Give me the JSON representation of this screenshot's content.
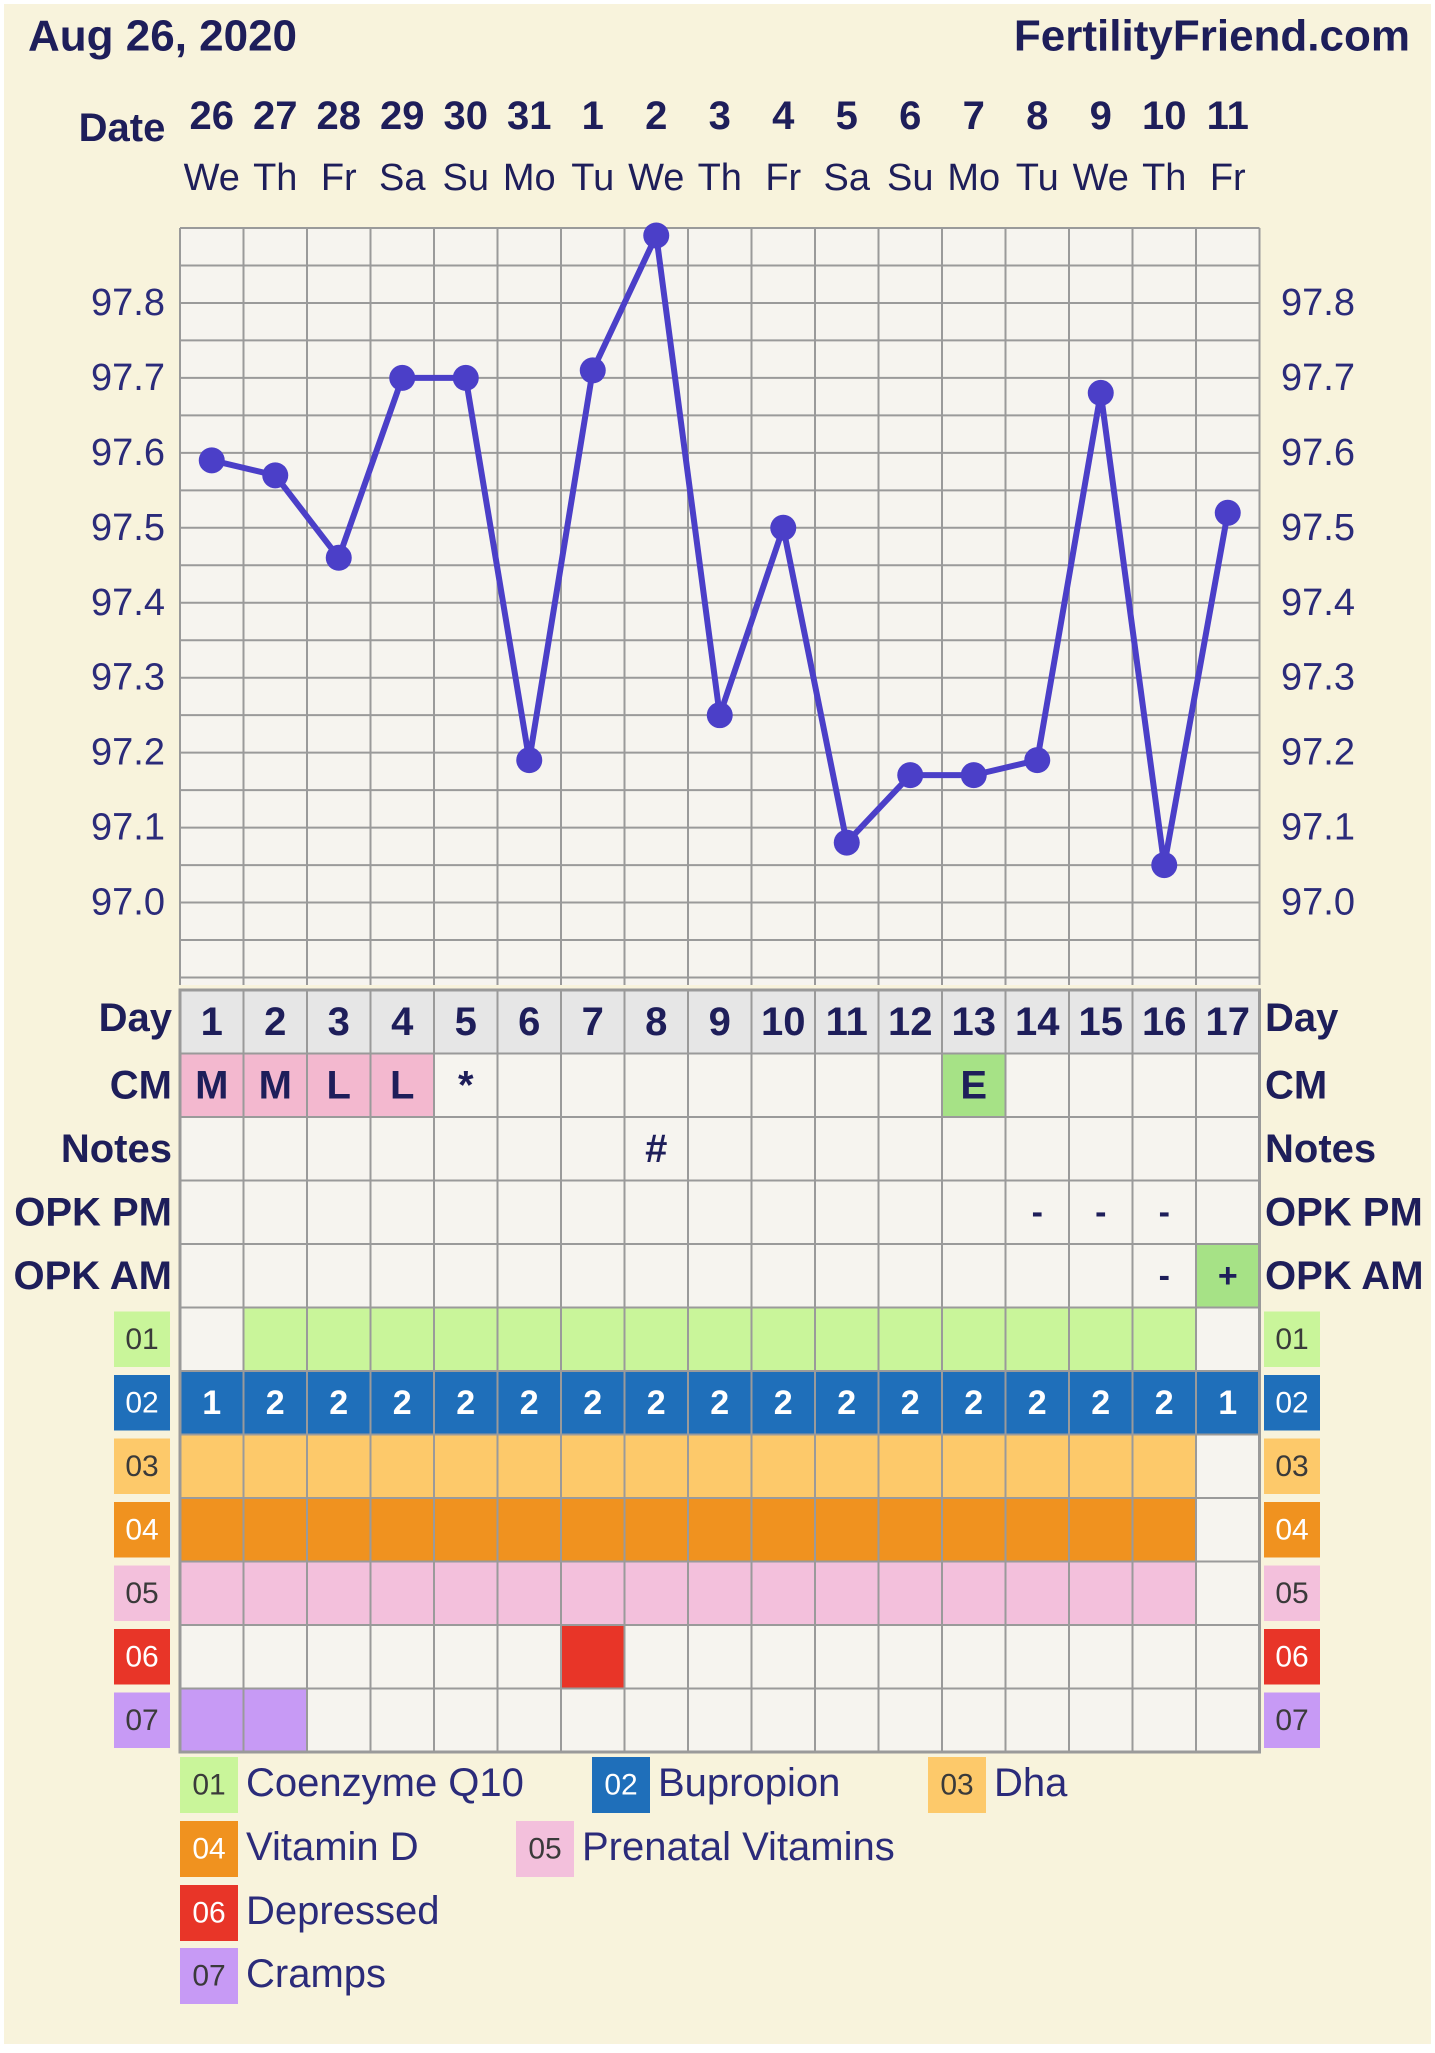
{
  "header": {
    "date_title": "Aug 26, 2020",
    "site": "FertilityFriend.com",
    "date_label": "Date"
  },
  "chart_data": {
    "type": "line",
    "dates": [
      "26",
      "27",
      "28",
      "29",
      "30",
      "31",
      "1",
      "2",
      "3",
      "4",
      "5",
      "6",
      "7",
      "8",
      "9",
      "10",
      "11"
    ],
    "weekdays": [
      "We",
      "Th",
      "Fr",
      "Sa",
      "Su",
      "Mo",
      "Tu",
      "We",
      "Th",
      "Fr",
      "Sa",
      "Su",
      "Mo",
      "Tu",
      "We",
      "Th",
      "Fr"
    ],
    "days": [
      "1",
      "2",
      "3",
      "4",
      "5",
      "6",
      "7",
      "8",
      "9",
      "10",
      "11",
      "12",
      "13",
      "14",
      "15",
      "16",
      "17"
    ],
    "temps": [
      97.59,
      97.57,
      97.46,
      97.7,
      97.7,
      97.19,
      97.71,
      97.89,
      97.25,
      97.5,
      97.08,
      97.17,
      97.17,
      97.19,
      97.68,
      97.05,
      97.52
    ],
    "y_ticks": [
      "97.0",
      "97.1",
      "97.2",
      "97.3",
      "97.4",
      "97.5",
      "97.6",
      "97.7",
      "97.8"
    ],
    "ylim": [
      96.89,
      97.9
    ],
    "line_color": "#4b3fc8",
    "grid": true
  },
  "rows": {
    "day_label": "Day",
    "cm_label": "CM",
    "notes_label": "Notes",
    "opk_pm_label": "OPK PM",
    "opk_am_label": "OPK AM",
    "cm": [
      "M",
      "M",
      "L",
      "L",
      "*",
      "",
      "",
      "",
      "",
      "",
      "",
      "",
      "E",
      "",
      "",
      "",
      ""
    ],
    "notes": [
      "",
      "",
      "",
      "",
      "",
      "",
      "",
      "#",
      "",
      "",
      "",
      "",
      "",
      "",
      "",
      "",
      ""
    ],
    "opk_pm": [
      "",
      "",
      "",
      "",
      "",
      "",
      "",
      "",
      "",
      "",
      "",
      "",
      "",
      "-",
      "-",
      "-",
      ""
    ],
    "opk_am": [
      "",
      "",
      "",
      "",
      "",
      "",
      "",
      "",
      "",
      "",
      "",
      "",
      "",
      "",
      "",
      "-",
      "+"
    ]
  },
  "tracks": [
    {
      "code": "01",
      "name": "Coenzyme Q10",
      "color": "#c9f59a",
      "text_color": "#3a3a3a",
      "cells": [
        0,
        1,
        1,
        1,
        1,
        1,
        1,
        1,
        1,
        1,
        1,
        1,
        1,
        1,
        1,
        1,
        0
      ],
      "values": [
        "",
        "",
        "",
        "",
        "",
        "",
        "",
        "",
        "",
        "",
        "",
        "",
        "",
        "",
        "",
        "",
        ""
      ]
    },
    {
      "code": "02",
      "name": "Bupropion",
      "color": "#1f6fba",
      "text_color": "#ffffff",
      "cells": [
        1,
        1,
        1,
        1,
        1,
        1,
        1,
        1,
        1,
        1,
        1,
        1,
        1,
        1,
        1,
        1,
        1
      ],
      "values": [
        "1",
        "2",
        "2",
        "2",
        "2",
        "2",
        "2",
        "2",
        "2",
        "2",
        "2",
        "2",
        "2",
        "2",
        "2",
        "2",
        "1"
      ]
    },
    {
      "code": "03",
      "name": "Dha",
      "color": "#fdc96a",
      "text_color": "#3a3a3a",
      "cells": [
        1,
        1,
        1,
        1,
        1,
        1,
        1,
        1,
        1,
        1,
        1,
        1,
        1,
        1,
        1,
        1,
        0
      ],
      "values": [
        "",
        "",
        "",
        "",
        "",
        "",
        "",
        "",
        "",
        "",
        "",
        "",
        "",
        "",
        "",
        "",
        ""
      ]
    },
    {
      "code": "04",
      "name": "Vitamin D",
      "color": "#f0921f",
      "text_color": "#ffffff",
      "cells": [
        1,
        1,
        1,
        1,
        1,
        1,
        1,
        1,
        1,
        1,
        1,
        1,
        1,
        1,
        1,
        1,
        0
      ],
      "values": [
        "",
        "",
        "",
        "",
        "",
        "",
        "",
        "",
        "",
        "",
        "",
        "",
        "",
        "",
        "",
        "",
        ""
      ]
    },
    {
      "code": "05",
      "name": "Prenatal Vitamins",
      "color": "#f3c0dc",
      "text_color": "#3a3a3a",
      "cells": [
        1,
        1,
        1,
        1,
        1,
        1,
        1,
        1,
        1,
        1,
        1,
        1,
        1,
        1,
        1,
        1,
        0
      ],
      "values": [
        "",
        "",
        "",
        "",
        "",
        "",
        "",
        "",
        "",
        "",
        "",
        "",
        "",
        "",
        "",
        "",
        ""
      ]
    },
    {
      "code": "06",
      "name": "Depressed",
      "color": "#e83528",
      "text_color": "#ffffff",
      "cells": [
        0,
        0,
        0,
        0,
        0,
        0,
        1,
        0,
        0,
        0,
        0,
        0,
        0,
        0,
        0,
        0,
        0
      ],
      "values": [
        "",
        "",
        "",
        "",
        "",
        "",
        "",
        "",
        "",
        "",
        "",
        "",
        "",
        "",
        "",
        "",
        ""
      ]
    },
    {
      "code": "07",
      "name": "Cramps",
      "color": "#c79af5",
      "text_color": "#3a3a3a",
      "cells": [
        1,
        1,
        0,
        0,
        0,
        0,
        0,
        0,
        0,
        0,
        0,
        0,
        0,
        0,
        0,
        0,
        0
      ],
      "values": [
        "",
        "",
        "",
        "",
        "",
        "",
        "",
        "",
        "",
        "",
        "",
        "",
        "",
        "",
        "",
        "",
        ""
      ]
    }
  ],
  "colors": {
    "page_bg": "#f8f3dc",
    "grid": "#9a9a9a",
    "cell_bg": "#f6f4ef",
    "header_text": "#1e1e5a",
    "tick_text": "#2b2b7a",
    "day_row_bg": "#e6e6e6",
    "cm_pink": "#f3b8cf",
    "cm_green": "#a6e286",
    "opk_positive": "#a6e286"
  }
}
